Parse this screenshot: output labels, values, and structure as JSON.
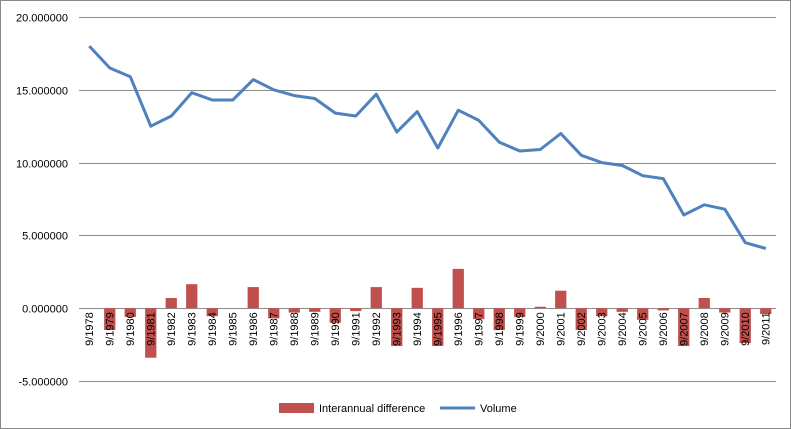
{
  "chart_data": {
    "type": "bar+line",
    "title": "",
    "xlabel": "",
    "ylabel": "",
    "ylim": [
      -5,
      20
    ],
    "yticks": [
      "-5.000000",
      "0.000000",
      "5.000000",
      "10.000000",
      "15.000000",
      "20.000000"
    ],
    "ytick_values": [
      -5,
      0,
      5,
      10,
      15,
      20
    ],
    "grid": true,
    "legend_position": "bottom",
    "categories": [
      "9/1978",
      "9/1979",
      "9/1980",
      "9/1981",
      "9/1982",
      "9/1983",
      "9/1984",
      "9/1985",
      "9/1986",
      "9/1987",
      "9/1988",
      "9/1989",
      "9/1990",
      "9/1991",
      "9/1992",
      "9/1993",
      "9/1994",
      "9/1995",
      "9/1996",
      "9/1997",
      "9/1998",
      "9/1999",
      "9/2000",
      "9/2001",
      "9/2002",
      "9/2003",
      "9/2004",
      "9/2005",
      "9/2006",
      "9/2007",
      "9/2008",
      "9/2009",
      "9/2010",
      "9/2011"
    ],
    "series": [
      {
        "name": "Interannual difference",
        "kind": "bar",
        "color": "#C0504D",
        "values": [
          null,
          -1.5,
          -0.6,
          -3.4,
          0.7,
          1.65,
          -0.55,
          0.0,
          1.45,
          -0.7,
          -0.3,
          -0.25,
          -1.0,
          -0.2,
          1.45,
          -2.6,
          1.4,
          -2.6,
          2.7,
          -0.75,
          -1.5,
          -0.6,
          0.1,
          1.2,
          -1.5,
          -0.55,
          -0.25,
          -0.8,
          -0.15,
          -2.6,
          0.7,
          -0.3,
          -2.4,
          -0.4
        ]
      },
      {
        "name": "Volume",
        "kind": "line",
        "color": "#4F81BD",
        "values": [
          18.0,
          16.5,
          15.9,
          12.5,
          13.2,
          14.8,
          14.3,
          14.3,
          15.7,
          15.0,
          14.6,
          14.4,
          13.4,
          13.2,
          14.7,
          12.1,
          13.5,
          11.0,
          13.6,
          12.9,
          11.4,
          10.8,
          10.9,
          12.0,
          10.5,
          10.0,
          9.8,
          9.1,
          8.9,
          6.4,
          7.1,
          6.8,
          4.5,
          4.1
        ]
      }
    ]
  }
}
